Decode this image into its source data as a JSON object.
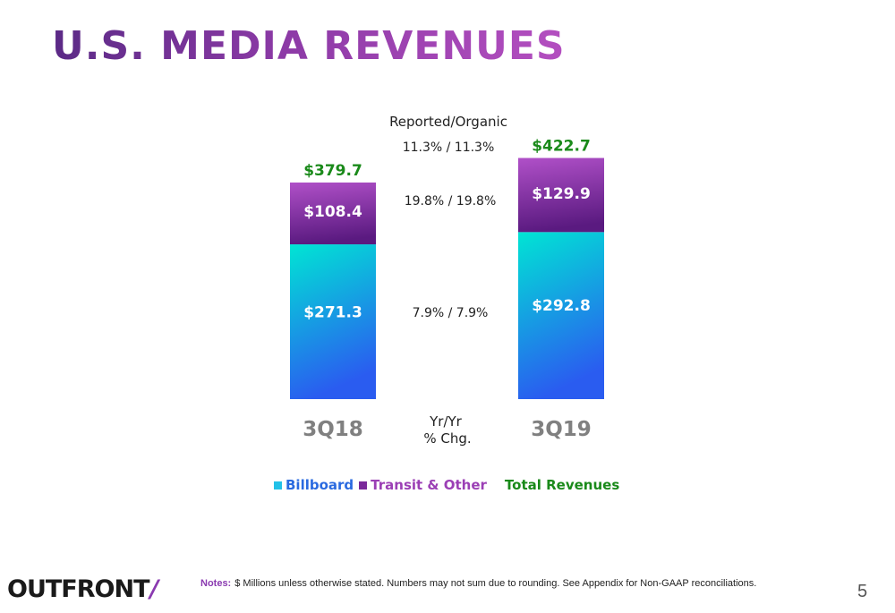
{
  "title": "U.S. MEDIA REVENUES",
  "colors": {
    "billboard": "#22c1e8",
    "billboard_top": "#00e5d4",
    "billboard_bottom": "#2a5cf0",
    "transit": "#7a2a9a",
    "transit_top": "#b050c8",
    "transit_bottom": "#5a1a80",
    "total": "#1a8a1a",
    "legend_transit_text": "#9b3fb5",
    "legend_billboard_text": "#2a6ae0",
    "category": "#808080"
  },
  "chart_data": {
    "type": "bar",
    "stacked": true,
    "categories": [
      "3Q18",
      "3Q19"
    ],
    "series": [
      {
        "name": "Billboard",
        "values": [
          271.3,
          292.8
        ],
        "labels": [
          "$271.3",
          "$292.8"
        ]
      },
      {
        "name": "Transit & Other",
        "values": [
          108.4,
          129.9
        ],
        "labels": [
          "$108.4",
          "$129.9"
        ]
      }
    ],
    "totals": {
      "name": "Total Revenues",
      "values": [
        379.7,
        422.7
      ],
      "labels": [
        "$379.7",
        "$422.7"
      ]
    },
    "yoy_header": "Reported/Organic",
    "yoy": {
      "total": "11.3% / 11.3%",
      "transit": "19.8% / 19.8%",
      "billboard": "7.9% / 7.9%"
    },
    "yoy_label": [
      "Yr/Yr",
      "% Chg."
    ],
    "legend": {
      "billboard": "Billboard",
      "transit": "Transit & Other",
      "total": "Total Revenues"
    }
  },
  "footer": {
    "logo": "OUTFRONT",
    "logo_mark": "/",
    "notes_label": "Notes:",
    "notes_text": "$ Millions unless otherwise stated. Numbers may not sum due to rounding. See Appendix for Non-GAAP reconciliations.",
    "page_number": "5"
  }
}
